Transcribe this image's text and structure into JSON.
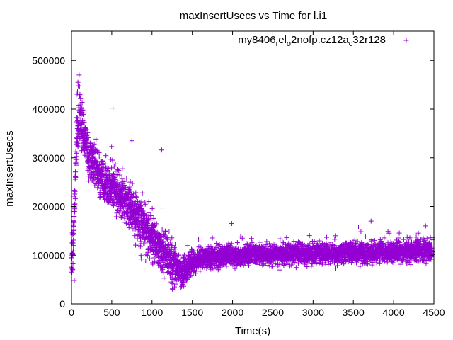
{
  "chart_data": {
    "type": "scatter",
    "title": "maxInsertUsecs vs Time for l.i1",
    "xlabel": "Time(s)",
    "ylabel": "maxInsertUsecs",
    "xlim": [
      0,
      4500
    ],
    "ylim": [
      0,
      560000
    ],
    "x_ticks": [
      0,
      500,
      1000,
      1500,
      2000,
      2500,
      3000,
      3500,
      4000,
      4500
    ],
    "y_ticks": [
      0,
      100000,
      200000,
      300000,
      400000,
      500000
    ],
    "legend_position": "top-right",
    "marker": "+",
    "series": [
      {
        "name": "my8406",
        "name_parts": [
          "my8406",
          "r",
          "el",
          "o",
          "2nofp.cz12a",
          "c",
          "32r128"
        ],
        "color": "#9400d3",
        "description": "approx. one point per second; noisy trend",
        "trend": [
          {
            "x": 0,
            "y": 80000
          },
          {
            "x": 25,
            "y": 130000
          },
          {
            "x": 60,
            "y": 330000
          },
          {
            "x": 100,
            "y": 385000
          },
          {
            "x": 200,
            "y": 310000
          },
          {
            "x": 300,
            "y": 280000
          },
          {
            "x": 400,
            "y": 255000
          },
          {
            "x": 500,
            "y": 240000
          },
          {
            "x": 600,
            "y": 225000
          },
          {
            "x": 700,
            "y": 205000
          },
          {
            "x": 800,
            "y": 180000
          },
          {
            "x": 900,
            "y": 155000
          },
          {
            "x": 1000,
            "y": 135000
          },
          {
            "x": 1100,
            "y": 110000
          },
          {
            "x": 1200,
            "y": 95000
          },
          {
            "x": 1300,
            "y": 75000
          },
          {
            "x": 1380,
            "y": 65000
          },
          {
            "x": 1450,
            "y": 80000
          },
          {
            "x": 1600,
            "y": 92000
          },
          {
            "x": 2000,
            "y": 100000
          },
          {
            "x": 3000,
            "y": 103000
          },
          {
            "x": 4000,
            "y": 107000
          },
          {
            "x": 4500,
            "y": 110000
          }
        ],
        "notable_points": [
          {
            "x": 35,
            "y": 48000
          },
          {
            "x": 95,
            "y": 470000
          },
          {
            "x": 80,
            "y": 455000
          },
          {
            "x": 75,
            "y": 437000
          },
          {
            "x": 105,
            "y": 430000
          },
          {
            "x": 515,
            "y": 402000
          },
          {
            "x": 750,
            "y": 335000
          },
          {
            "x": 1120,
            "y": 316000
          },
          {
            "x": 1360,
            "y": 33000
          },
          {
            "x": 1990,
            "y": 165000
          },
          {
            "x": 3720,
            "y": 170000
          }
        ]
      }
    ]
  }
}
